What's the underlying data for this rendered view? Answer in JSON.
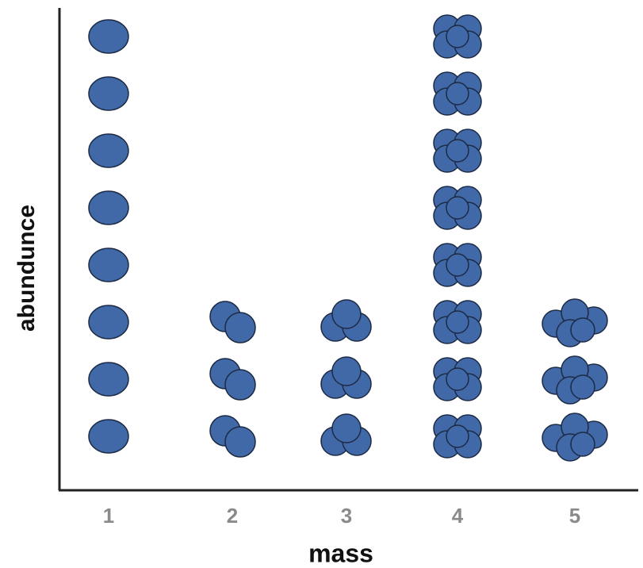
{
  "chart_data": {
    "type": "pictograph",
    "x_label": "mass",
    "y_label": "abundunce",
    "categories": [
      "1",
      "2",
      "3",
      "4",
      "5"
    ],
    "values": [
      8,
      3,
      3,
      8,
      3
    ],
    "color": "#4169a8"
  }
}
